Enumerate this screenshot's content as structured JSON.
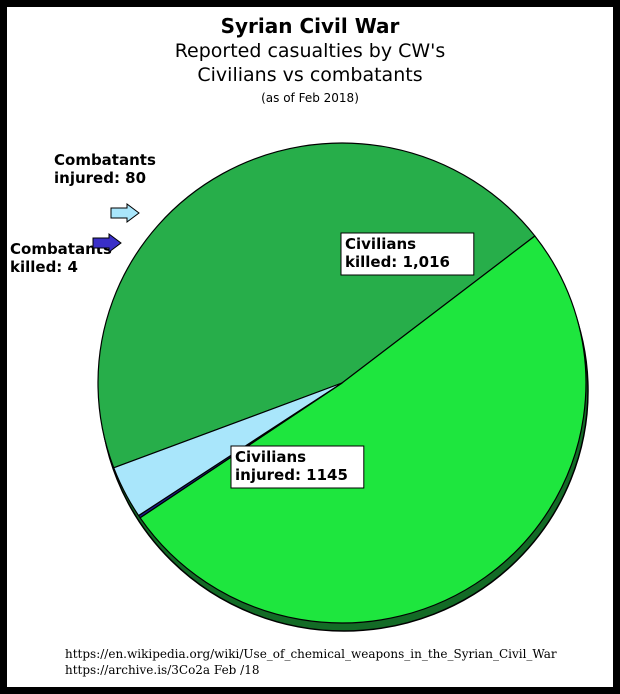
{
  "chart_data": {
    "type": "pie",
    "title": "Syrian Civil War",
    "subtitle": [
      "Reported casualties by CW's",
      "Civilians vs combatants"
    ],
    "note": "(as of Feb 2018)",
    "slices": [
      {
        "label_lines": [
          "Civilians",
          "killed: 1,016"
        ],
        "value": 1016,
        "color": "#27ae4a"
      },
      {
        "label_lines": [
          "Civilians",
          "injured: 1145"
        ],
        "value": 1145,
        "color": "#1ee63e"
      },
      {
        "label_lines": [
          "Combatants",
          "killed: 4"
        ],
        "value": 4,
        "color": "#1b1b8c"
      },
      {
        "label_lines": [
          "Combatants",
          "injured: 80"
        ],
        "value": 80,
        "color": "#a9e6fb"
      }
    ],
    "arrow_colors": {
      "combatants_injured": "#a9e6fb",
      "combatants_killed": "#3a2fc8"
    }
  },
  "sources": [
    "https://en.wikipedia.org/wiki/Use_of_chemical_weapons_in_the_Syrian_Civil_War",
    "https://archive.is/3Co2a  Feb /18"
  ]
}
